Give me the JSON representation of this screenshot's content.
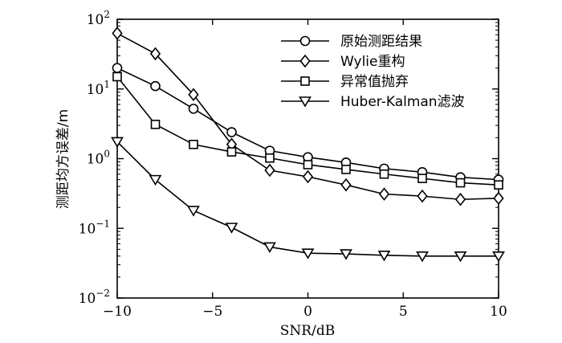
{
  "chart_data": {
    "type": "line",
    "title": "",
    "xlabel": "SNR/dB",
    "ylabel": "测距均方误差/m",
    "xlim": [
      -10,
      10
    ],
    "ylim": [
      0.01,
      100
    ],
    "yscale": "log",
    "x_ticks": [
      -10,
      -5,
      0,
      5,
      10
    ],
    "x_tick_labels": [
      "−10",
      "−5",
      "0",
      "5",
      "10"
    ],
    "y_ticks": [
      {
        "value": 0.01,
        "base": "10",
        "exp": "−2"
      },
      {
        "value": 0.1,
        "base": "10",
        "exp": "−1"
      },
      {
        "value": 1,
        "base": "10",
        "exp": "0"
      },
      {
        "value": 10,
        "base": "10",
        "exp": "1"
      },
      {
        "value": 100,
        "base": "10",
        "exp": "2"
      }
    ],
    "x": [
      -10,
      -8,
      -6,
      -4,
      -2,
      0,
      2,
      4,
      6,
      8,
      10
    ],
    "legend_position": "top-right",
    "series": [
      {
        "name": "原始测距结果",
        "marker": "circle",
        "values": [
          20,
          11,
          5.2,
          2.4,
          1.3,
          1.05,
          0.88,
          0.72,
          0.64,
          0.54,
          0.5
        ]
      },
      {
        "name": "Wylie重构",
        "marker": "diamond",
        "values": [
          63,
          32,
          8.3,
          1.6,
          0.68,
          0.55,
          0.42,
          0.31,
          0.29,
          0.26,
          0.27
        ]
      },
      {
        "name": "异常值抛弃",
        "marker": "square",
        "values": [
          15,
          3.1,
          1.6,
          1.25,
          1.02,
          0.82,
          0.7,
          0.6,
          0.52,
          0.45,
          0.42
        ]
      },
      {
        "name": "Huber-Kalman滤波",
        "marker": "triangle-down",
        "values": [
          1.75,
          0.5,
          0.18,
          0.103,
          0.054,
          0.044,
          0.043,
          0.041,
          0.04,
          0.04,
          0.04
        ]
      }
    ]
  }
}
